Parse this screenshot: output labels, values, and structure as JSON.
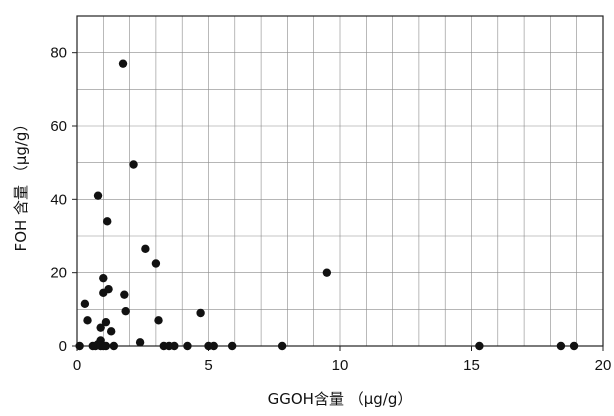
{
  "chart_data": {
    "type": "scatter",
    "title": "",
    "xlabel": "GGOH含量 （μg/g）",
    "ylabel": "FOH 含量 （μg/g）",
    "xlim": [
      0,
      20
    ],
    "ylim": [
      0,
      90
    ],
    "x_ticks": [
      "0",
      "5",
      "10",
      "15",
      "20"
    ],
    "y_ticks": [
      "0",
      "20",
      "40",
      "60",
      "80"
    ],
    "grid": true,
    "marker_color": "#111111",
    "series": [
      {
        "points": [
          [
            0.1,
            0
          ],
          [
            0.3,
            11.5
          ],
          [
            0.4,
            7
          ],
          [
            0.6,
            0
          ],
          [
            0.7,
            0
          ],
          [
            0.8,
            41
          ],
          [
            0.8,
            0.5
          ],
          [
            0.9,
            5
          ],
          [
            0.9,
            1.5
          ],
          [
            0.9,
            0
          ],
          [
            1.0,
            14.5
          ],
          [
            1.0,
            18.5
          ],
          [
            1.0,
            0
          ],
          [
            1.1,
            6.5
          ],
          [
            1.1,
            0
          ],
          [
            1.15,
            34
          ],
          [
            1.2,
            15.5
          ],
          [
            1.3,
            4
          ],
          [
            1.4,
            0
          ],
          [
            1.75,
            77
          ],
          [
            1.8,
            14
          ],
          [
            1.85,
            9.5
          ],
          [
            2.15,
            49.5
          ],
          [
            2.4,
            1
          ],
          [
            2.6,
            26.5
          ],
          [
            3.0,
            22.5
          ],
          [
            3.1,
            7
          ],
          [
            3.3,
            0
          ],
          [
            3.5,
            0
          ],
          [
            3.7,
            0
          ],
          [
            4.2,
            0
          ],
          [
            4.7,
            9
          ],
          [
            5.0,
            0
          ],
          [
            5.2,
            0
          ],
          [
            5.9,
            0
          ],
          [
            7.8,
            0
          ],
          [
            9.5,
            20
          ],
          [
            15.3,
            0
          ],
          [
            18.4,
            0
          ],
          [
            18.9,
            0
          ]
        ]
      }
    ]
  }
}
